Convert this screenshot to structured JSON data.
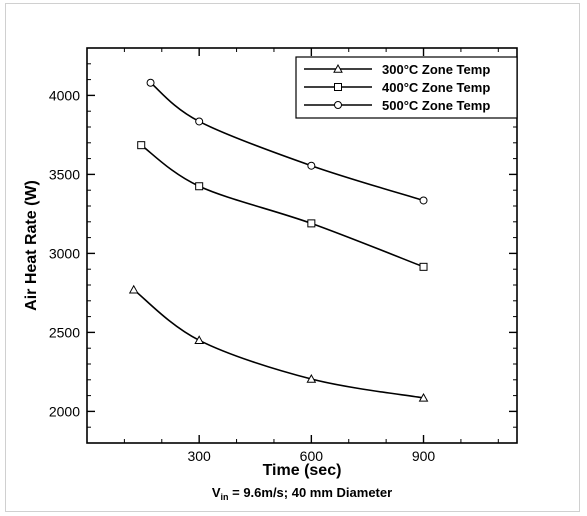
{
  "chart_data": {
    "type": "line",
    "xlabel": "Time (sec)",
    "ylabel": "Air Heat Rate (W)",
    "caption": {
      "prefix": "V",
      "subscript": "in",
      "suffix": " = 9.6m/s; 40 mm Diameter"
    },
    "xlim": [
      0,
      1150
    ],
    "ylim": [
      1800,
      4300
    ],
    "xticks": [
      300,
      600,
      900
    ],
    "yticks": [
      2000,
      2500,
      3000,
      3500,
      4000
    ],
    "legend_position": "top-right",
    "grid": false,
    "series": [
      {
        "name": "300°C Zone Temp",
        "marker": "triangle",
        "x": [
          125,
          300,
          600,
          900
        ],
        "y": [
          2770,
          2450,
          2205,
          2085
        ]
      },
      {
        "name": "400°C Zone Temp",
        "marker": "square",
        "x": [
          145,
          300,
          600,
          900
        ],
        "y": [
          3685,
          3425,
          3190,
          2915
        ]
      },
      {
        "name": "500°C Zone Temp",
        "marker": "circle",
        "x": [
          170,
          300,
          600,
          900
        ],
        "y": [
          4080,
          3835,
          3555,
          3335
        ]
      }
    ]
  }
}
